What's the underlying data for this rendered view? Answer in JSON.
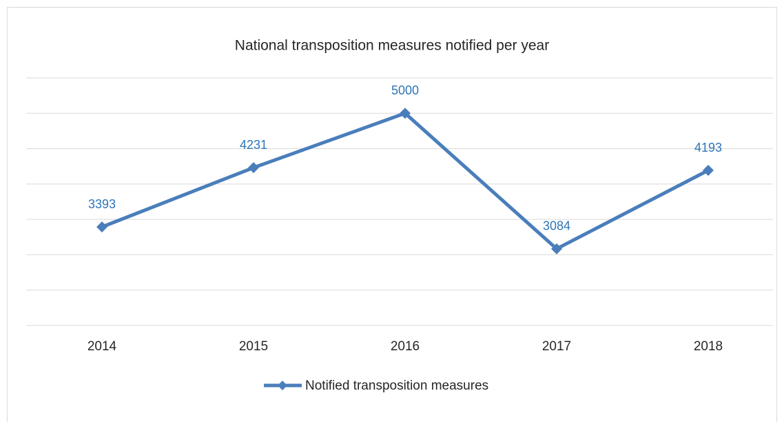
{
  "chart_data": {
    "type": "line",
    "title": "National transposition measures notified per year",
    "categories": [
      "2014",
      "2015",
      "2016",
      "2017",
      "2018"
    ],
    "series": [
      {
        "name": "Notified transposition measures",
        "color": "#4a7ebb",
        "values": [
          3393,
          4231,
          5000,
          3084,
          4193
        ]
      }
    ],
    "ylim": [
      2000,
      5500
    ],
    "yticks": [
      2000,
      2500,
      3000,
      3500,
      4000,
      4500,
      5000,
      5500
    ],
    "grid": true,
    "legend": "bottom",
    "data_labels": true
  }
}
